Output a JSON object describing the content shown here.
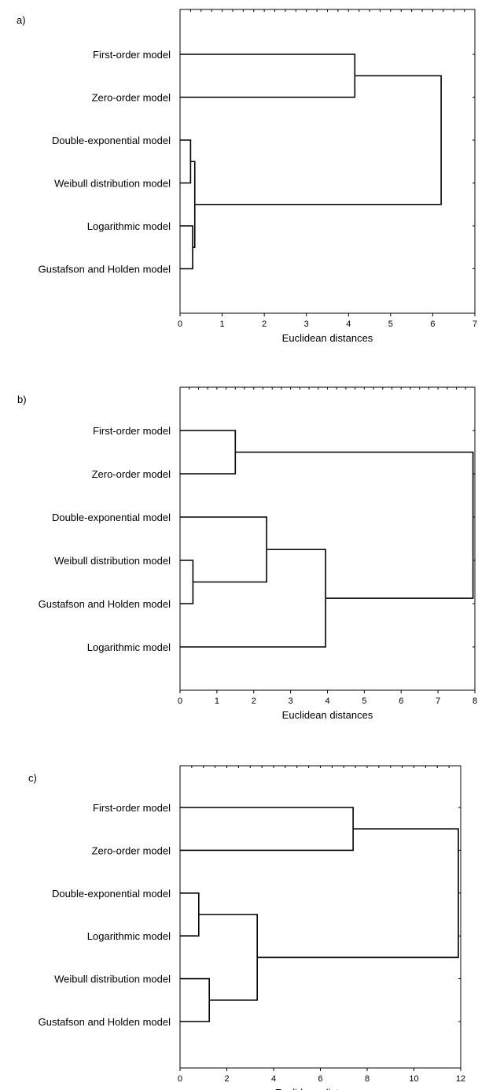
{
  "chart_data": [
    {
      "type": "dendrogram",
      "panel_label": "a)",
      "xlabel": "Euclidean distances",
      "xlim": [
        0,
        7
      ],
      "xticks": [
        0,
        1,
        2,
        3,
        4,
        5,
        6,
        7
      ],
      "leaves": [
        "First-order model",
        "Zero-order model",
        "Double-exponential model",
        "Weibull distribution model",
        "Logarithmic model",
        "Gustafson and Holden model"
      ],
      "merges": [
        {
          "a": "L2",
          "b": "L3",
          "height": 0.25
        },
        {
          "a": "L4",
          "b": "L5",
          "height": 0.3
        },
        {
          "a": "M0",
          "b": "M1",
          "height": 0.35
        },
        {
          "a": "L0",
          "b": "L1",
          "height": 4.15
        },
        {
          "a": "M3",
          "b": "M2",
          "height": 6.2
        }
      ]
    },
    {
      "type": "dendrogram",
      "panel_label": "b)",
      "xlabel": "Euclidean distances",
      "xlim": [
        0,
        8
      ],
      "xticks": [
        0,
        1,
        2,
        3,
        4,
        5,
        6,
        7,
        8
      ],
      "leaves": [
        "First-order model",
        "Zero-order model",
        "Double-exponential model",
        "Weibull distribution model",
        "Gustafson and Holden model",
        "Logarithmic model"
      ],
      "merges": [
        {
          "a": "L3",
          "b": "L4",
          "height": 0.35
        },
        {
          "a": "L2",
          "b": "M0",
          "height": 2.35
        },
        {
          "a": "L0",
          "b": "L1",
          "height": 1.5
        },
        {
          "a": "M1",
          "b": "L5",
          "height": 3.95
        },
        {
          "a": "M2",
          "b": "M3",
          "height": 7.95
        }
      ]
    },
    {
      "type": "dendrogram",
      "panel_label": "c)",
      "xlabel": "Euclidean distances",
      "xlim": [
        0,
        12
      ],
      "xticks": [
        0,
        2,
        4,
        6,
        8,
        10,
        12
      ],
      "leaves": [
        "First-order model",
        "Zero-order model",
        "Double-exponential model",
        "Logarithmic model",
        "Weibull distribution model",
        "Gustafson and Holden model"
      ],
      "merges": [
        {
          "a": "L2",
          "b": "L3",
          "height": 0.8
        },
        {
          "a": "L4",
          "b": "L5",
          "height": 1.25
        },
        {
          "a": "M0",
          "b": "M1",
          "height": 3.3
        },
        {
          "a": "L0",
          "b": "L1",
          "height": 7.4
        },
        {
          "a": "M3",
          "b": "M2",
          "height": 11.9
        }
      ]
    }
  ]
}
